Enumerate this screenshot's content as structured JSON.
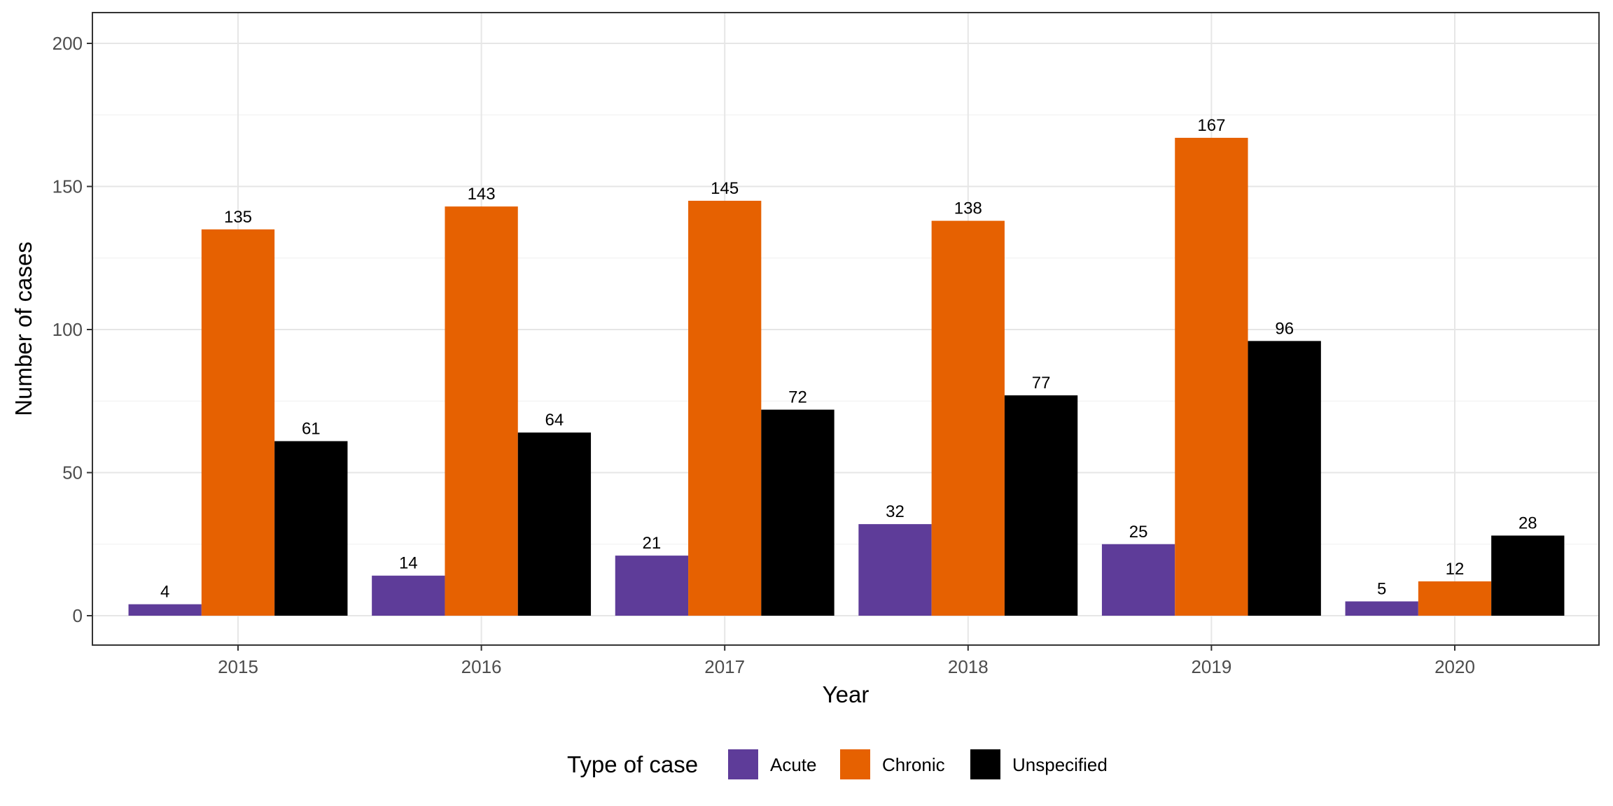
{
  "chart_data": {
    "type": "bar",
    "title": "",
    "xlabel": "Year",
    "ylabel": "Number of cases",
    "categories": [
      "2015",
      "2016",
      "2017",
      "2018",
      "2019",
      "2020"
    ],
    "series": [
      {
        "name": "Acute",
        "color": "#5e3c99",
        "values": [
          4,
          14,
          21,
          32,
          25,
          5
        ]
      },
      {
        "name": "Chronic",
        "color": "#e66101",
        "values": [
          135,
          143,
          145,
          138,
          167,
          12
        ]
      },
      {
        "name": "Unspecified",
        "color": "#000000",
        "values": [
          61,
          64,
          72,
          77,
          96,
          28
        ]
      }
    ],
    "ylim": [
      0,
      200
    ],
    "yticks": [
      0,
      50,
      100,
      150,
      200
    ],
    "grid": true,
    "legend": {
      "title": "Type of case",
      "position": "bottom"
    }
  }
}
